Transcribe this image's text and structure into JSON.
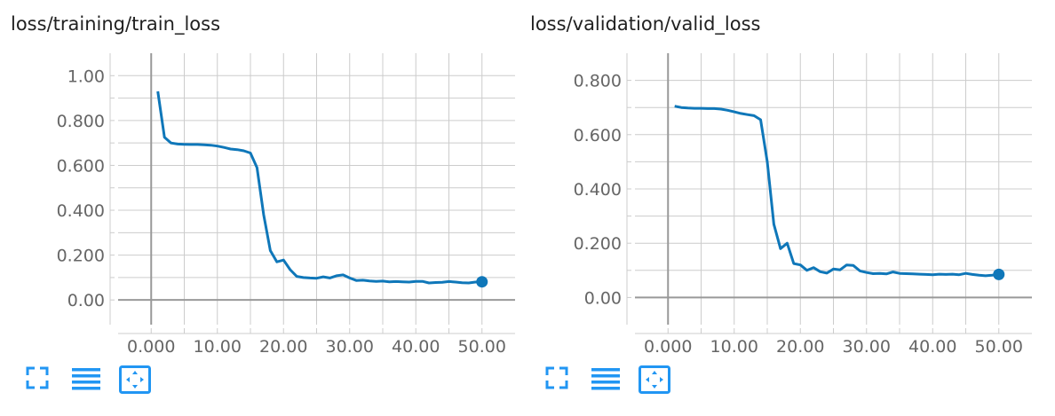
{
  "colors": {
    "line": "#0f77b9",
    "grid": "#cccccc",
    "axis": "#999999",
    "tick_text": "#666666",
    "icon": "#2196f3"
  },
  "icons": [
    "fullscreen-icon",
    "list-icon",
    "fit-domain-icon"
  ],
  "chart_data": [
    {
      "type": "line",
      "title": "loss/training/train_loss",
      "xlabel": "",
      "ylabel": "",
      "xlim": [
        -5,
        55
      ],
      "ylim": [
        -0.11,
        1.1
      ],
      "xticks": [
        0,
        5,
        10,
        15,
        20,
        25,
        30,
        35,
        40,
        45,
        50
      ],
      "xtick_labels": [
        "0.000",
        "",
        "10.00",
        "",
        "20.00",
        "",
        "30.00",
        "",
        "40.00",
        "",
        "50.00"
      ],
      "yticks": [
        0,
        0.1,
        0.2,
        0.3,
        0.4,
        0.5,
        0.6,
        0.7,
        0.8,
        0.9,
        1.0
      ],
      "ytick_labels": [
        "0.00",
        "",
        "0.200",
        "",
        "0.400",
        "",
        "0.600",
        "",
        "0.800",
        "",
        "1.00"
      ],
      "grid": true,
      "series": [
        {
          "x": [
            1,
            2,
            3,
            4,
            5,
            6,
            7,
            8,
            9,
            10,
            11,
            12,
            13,
            14,
            15,
            16,
            17,
            18,
            19,
            20,
            21,
            22,
            23,
            24,
            25,
            26,
            27,
            28,
            29,
            30,
            31,
            32,
            33,
            34,
            35,
            36,
            37,
            38,
            39,
            40,
            41,
            42,
            43,
            44,
            45,
            46,
            47,
            48,
            49,
            50
          ],
          "values": [
            0.93,
            0.725,
            0.7,
            0.695,
            0.694,
            0.693,
            0.693,
            0.692,
            0.69,
            0.686,
            0.68,
            0.673,
            0.67,
            0.665,
            0.655,
            0.59,
            0.38,
            0.22,
            0.17,
            0.178,
            0.135,
            0.105,
            0.1,
            0.098,
            0.097,
            0.103,
            0.098,
            0.108,
            0.112,
            0.098,
            0.087,
            0.088,
            0.085,
            0.083,
            0.084,
            0.081,
            0.082,
            0.081,
            0.08,
            0.083,
            0.083,
            0.076,
            0.078,
            0.079,
            0.082,
            0.08,
            0.077,
            0.076,
            0.08,
            0.081
          ]
        }
      ]
    },
    {
      "type": "line",
      "title": "loss/validation/valid_loss",
      "xlabel": "",
      "ylabel": "",
      "xlim": [
        -5,
        55
      ],
      "ylim": [
        -0.1,
        0.9
      ],
      "xticks": [
        0,
        5,
        10,
        15,
        20,
        25,
        30,
        35,
        40,
        45,
        50
      ],
      "xtick_labels": [
        "0.000",
        "",
        "10.00",
        "",
        "20.00",
        "",
        "30.00",
        "",
        "40.00",
        "",
        "50.00"
      ],
      "yticks": [
        0,
        0.1,
        0.2,
        0.3,
        0.4,
        0.5,
        0.6,
        0.7,
        0.8
      ],
      "ytick_labels": [
        "0.00",
        "",
        "0.200",
        "",
        "0.400",
        "",
        "0.600",
        "",
        "0.800"
      ],
      "grid": true,
      "series": [
        {
          "x": [
            1,
            2,
            3,
            4,
            5,
            6,
            7,
            8,
            9,
            10,
            11,
            12,
            13,
            14,
            15,
            16,
            17,
            18,
            19,
            20,
            21,
            22,
            23,
            24,
            25,
            26,
            27,
            28,
            29,
            30,
            31,
            32,
            33,
            34,
            35,
            36,
            37,
            38,
            39,
            40,
            41,
            42,
            43,
            44,
            45,
            46,
            47,
            48,
            49,
            50
          ],
          "values": [
            0.705,
            0.7,
            0.698,
            0.697,
            0.697,
            0.696,
            0.696,
            0.694,
            0.69,
            0.684,
            0.678,
            0.674,
            0.67,
            0.655,
            0.5,
            0.27,
            0.18,
            0.2,
            0.125,
            0.12,
            0.1,
            0.11,
            0.095,
            0.09,
            0.105,
            0.102,
            0.12,
            0.118,
            0.098,
            0.092,
            0.088,
            0.089,
            0.087,
            0.094,
            0.089,
            0.088,
            0.087,
            0.086,
            0.085,
            0.084,
            0.086,
            0.085,
            0.086,
            0.084,
            0.089,
            0.085,
            0.082,
            0.08,
            0.082,
            0.085
          ]
        }
      ]
    }
  ]
}
